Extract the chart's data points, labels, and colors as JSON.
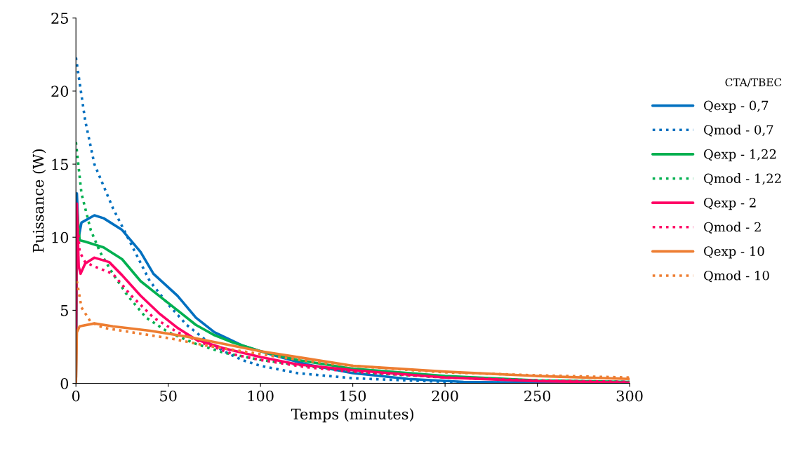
{
  "chart_data": {
    "type": "line",
    "xlabel": "Temps (minutes)",
    "ylabel": "Puissance (W)",
    "legend_title": "CTA/TBEC",
    "legend": "right",
    "grid": false,
    "marker": "none",
    "xlim": [
      0,
      300
    ],
    "ylim": [
      0,
      25
    ],
    "xticks": [
      0,
      50,
      100,
      150,
      200,
      250,
      300
    ],
    "yticks": [
      0,
      5,
      10,
      15,
      20,
      25
    ],
    "series": [
      {
        "name": "Qexp - 0,7",
        "color": "#0070c0",
        "line_style": "solid",
        "x": [
          0,
          0.5,
          1.5,
          3,
          10,
          15,
          25,
          35,
          42,
          55,
          65,
          75,
          90,
          105,
          125,
          150,
          180,
          210,
          250,
          300
        ],
        "values": [
          0,
          13,
          10,
          11,
          11.5,
          11.3,
          10.5,
          9,
          7.5,
          6,
          4.5,
          3.5,
          2.6,
          2,
          1.3,
          0.7,
          0.3,
          0.1,
          0.05,
          0
        ]
      },
      {
        "name": "Qmod - 0,7",
        "color": "#0070c0",
        "line_style": "dotted",
        "x": [
          0,
          5,
          10,
          20,
          30,
          40,
          50,
          60,
          70,
          80,
          90,
          100,
          120,
          150,
          200,
          250,
          300
        ],
        "values": [
          22.3,
          18,
          15,
          12,
          9.5,
          7,
          5.4,
          4,
          3,
          2.2,
          1.6,
          1.2,
          0.7,
          0.35,
          0.1,
          0.02,
          0
        ]
      },
      {
        "name": "Qexp - 1,22",
        "color": "#00b050",
        "line_style": "solid",
        "x": [
          0,
          0.5,
          2,
          5,
          15,
          25,
          35,
          45,
          55,
          65,
          75,
          85,
          100,
          120,
          150,
          200,
          250,
          300
        ],
        "values": [
          0,
          12,
          9.8,
          9.7,
          9.3,
          8.5,
          7,
          6,
          5,
          4,
          3.3,
          2.8,
          2.2,
          1.6,
          1,
          0.5,
          0.2,
          0.1
        ]
      },
      {
        "name": "Qmod - 1,22",
        "color": "#00b050",
        "line_style": "dotted",
        "x": [
          0,
          3,
          8,
          13,
          20,
          28,
          38,
          50,
          65,
          80,
          100,
          130,
          160,
          200,
          250,
          300
        ],
        "values": [
          16.5,
          13,
          10.5,
          9,
          7.5,
          6,
          4.5,
          3.5,
          2.7,
          2.1,
          1.6,
          1.1,
          0.7,
          0.4,
          0.2,
          0.1
        ]
      },
      {
        "name": "Qexp - 2",
        "color": "#ff0066",
        "line_style": "solid",
        "x": [
          0,
          0.5,
          1.5,
          2.5,
          5,
          10,
          18,
          25,
          35,
          45,
          55,
          65,
          80,
          100,
          120,
          150,
          200,
          250,
          300
        ],
        "values": [
          0,
          12.3,
          8,
          7.5,
          8.2,
          8.6,
          8.3,
          7.4,
          6,
          4.8,
          3.8,
          3,
          2.4,
          1.8,
          1.3,
          0.9,
          0.4,
          0.15,
          0.05
        ]
      },
      {
        "name": "Qmod - 2",
        "color": "#ff0066",
        "line_style": "dotted",
        "x": [
          0.3,
          2,
          5,
          10,
          20,
          30,
          42,
          55,
          70,
          85,
          100,
          125,
          150,
          200,
          250,
          300
        ],
        "values": [
          12,
          9,
          8.3,
          8,
          7.5,
          6,
          4.5,
          3.5,
          2.7,
          2,
          1.6,
          1.1,
          0.8,
          0.4,
          0.2,
          0.1
        ]
      },
      {
        "name": "Qexp - 10",
        "color": "#ed7d31",
        "line_style": "solid",
        "x": [
          0,
          0.5,
          2,
          10,
          20,
          40,
          60,
          80,
          100,
          125,
          150,
          200,
          250,
          300
        ],
        "values": [
          0,
          3.5,
          3.9,
          4.1,
          3.9,
          3.6,
          3.2,
          2.7,
          2.2,
          1.7,
          1.2,
          0.8,
          0.5,
          0.3
        ]
      },
      {
        "name": "Qmod - 10",
        "color": "#ed7d31",
        "line_style": "dotted",
        "x": [
          0.5,
          3,
          8,
          15,
          30,
          50,
          70,
          90,
          110,
          140,
          160,
          200,
          250,
          300
        ],
        "values": [
          7,
          5.2,
          4.2,
          3.8,
          3.5,
          3.1,
          2.6,
          2.2,
          1.8,
          1.3,
          1.1,
          0.75,
          0.55,
          0.4
        ]
      }
    ]
  }
}
